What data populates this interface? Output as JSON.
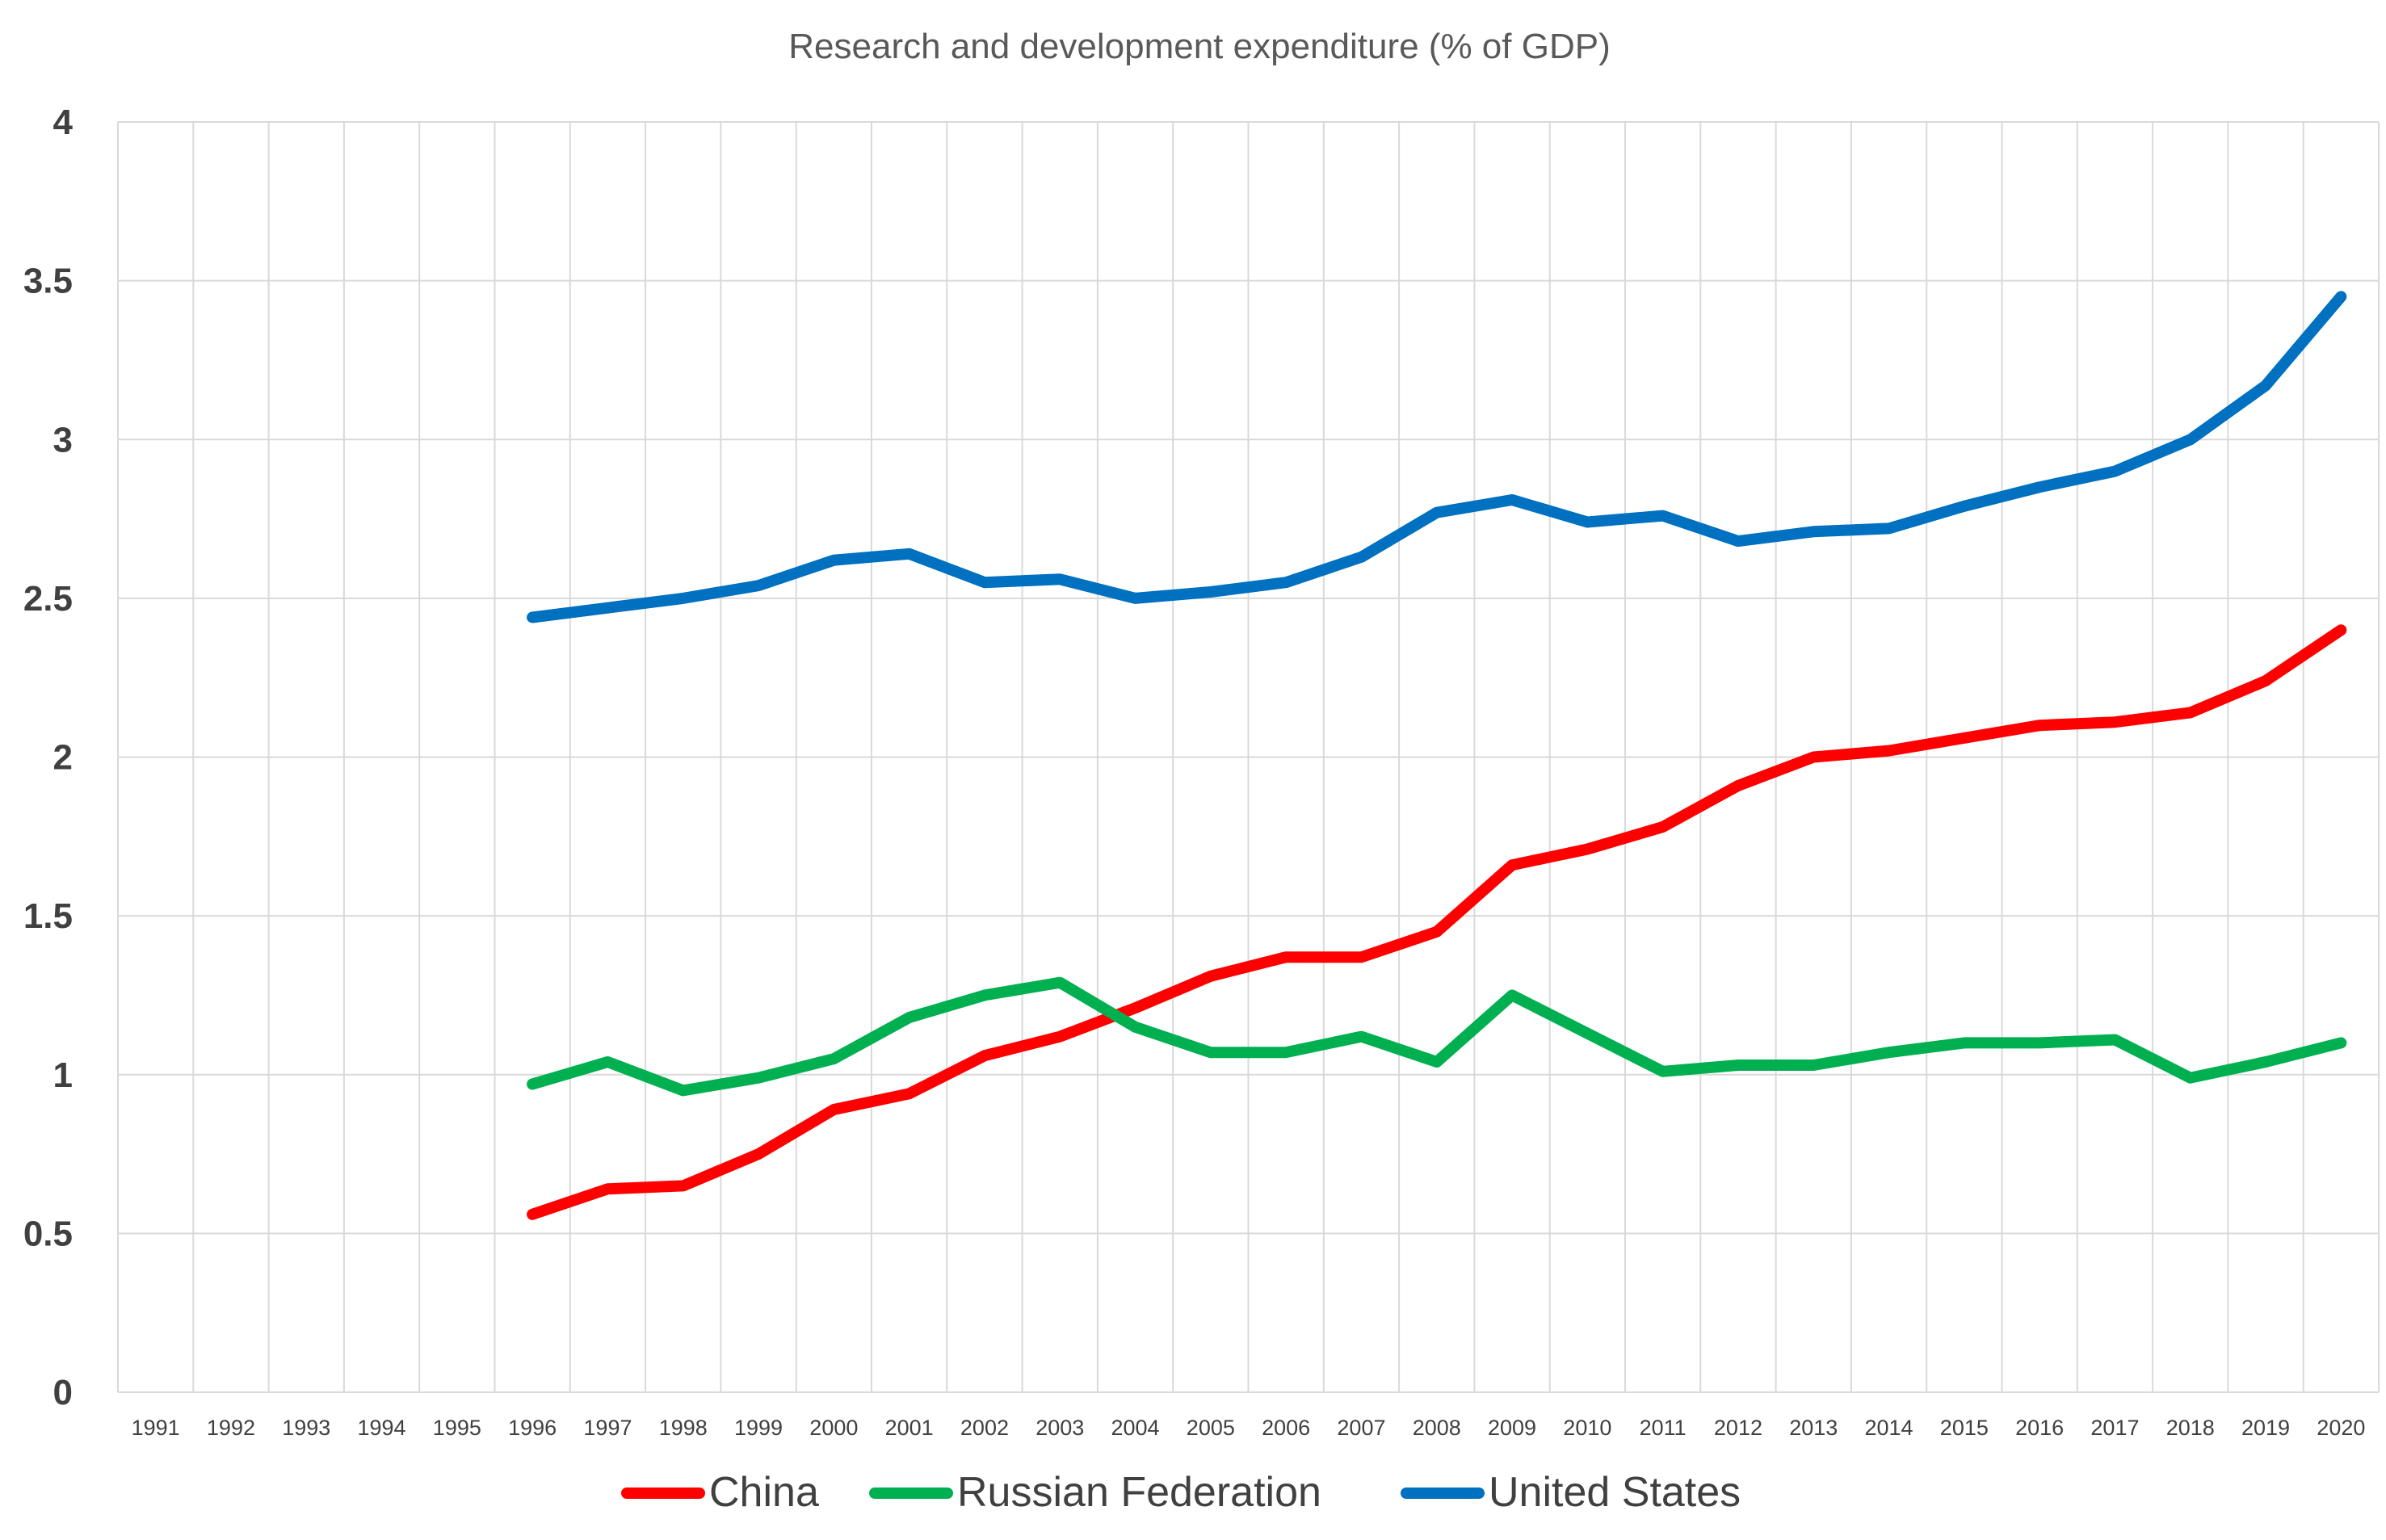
{
  "chart_data": {
    "type": "line",
    "title": "Research and development expenditure (% of GDP)",
    "xlabel": "",
    "ylabel": "",
    "ylim": [
      0,
      4
    ],
    "yticks": [
      "0",
      "0.5",
      "1",
      "1.5",
      "2",
      "2.5",
      "3",
      "3.5",
      "4"
    ],
    "categories": [
      "1991",
      "1992",
      "1993",
      "1994",
      "1995",
      "1996",
      "1997",
      "1998",
      "1999",
      "2000",
      "2001",
      "2002",
      "2003",
      "2004",
      "2005",
      "2006",
      "2007",
      "2008",
      "2009",
      "2010",
      "2011",
      "2012",
      "2013",
      "2014",
      "2015",
      "2016",
      "2017",
      "2018",
      "2019",
      "2020"
    ],
    "grid": true,
    "legend_position": "bottom",
    "series": [
      {
        "name": "China",
        "color": "#ff0000",
        "values": [
          null,
          null,
          null,
          null,
          null,
          0.56,
          0.64,
          0.65,
          0.75,
          0.89,
          0.94,
          1.06,
          1.12,
          1.21,
          1.31,
          1.37,
          1.37,
          1.45,
          1.66,
          1.71,
          1.78,
          1.91,
          2.0,
          2.02,
          2.06,
          2.1,
          2.11,
          2.14,
          2.24,
          2.4
        ]
      },
      {
        "name": "Russian Federation",
        "color": "#00b050",
        "values": [
          null,
          null,
          null,
          null,
          null,
          0.97,
          1.04,
          0.95,
          0.99,
          1.05,
          1.18,
          1.25,
          1.29,
          1.15,
          1.07,
          1.07,
          1.12,
          1.04,
          1.25,
          1.13,
          1.01,
          1.03,
          1.03,
          1.07,
          1.1,
          1.1,
          1.11,
          0.99,
          1.04,
          1.1
        ]
      },
      {
        "name": "United States",
        "color": "#0070c0",
        "values": [
          null,
          null,
          null,
          null,
          null,
          2.44,
          2.47,
          2.5,
          2.54,
          2.62,
          2.64,
          2.55,
          2.56,
          2.5,
          2.52,
          2.55,
          2.63,
          2.77,
          2.81,
          2.74,
          2.76,
          2.68,
          2.71,
          2.72,
          2.79,
          2.85,
          2.9,
          3.0,
          3.17,
          3.45
        ]
      }
    ]
  }
}
